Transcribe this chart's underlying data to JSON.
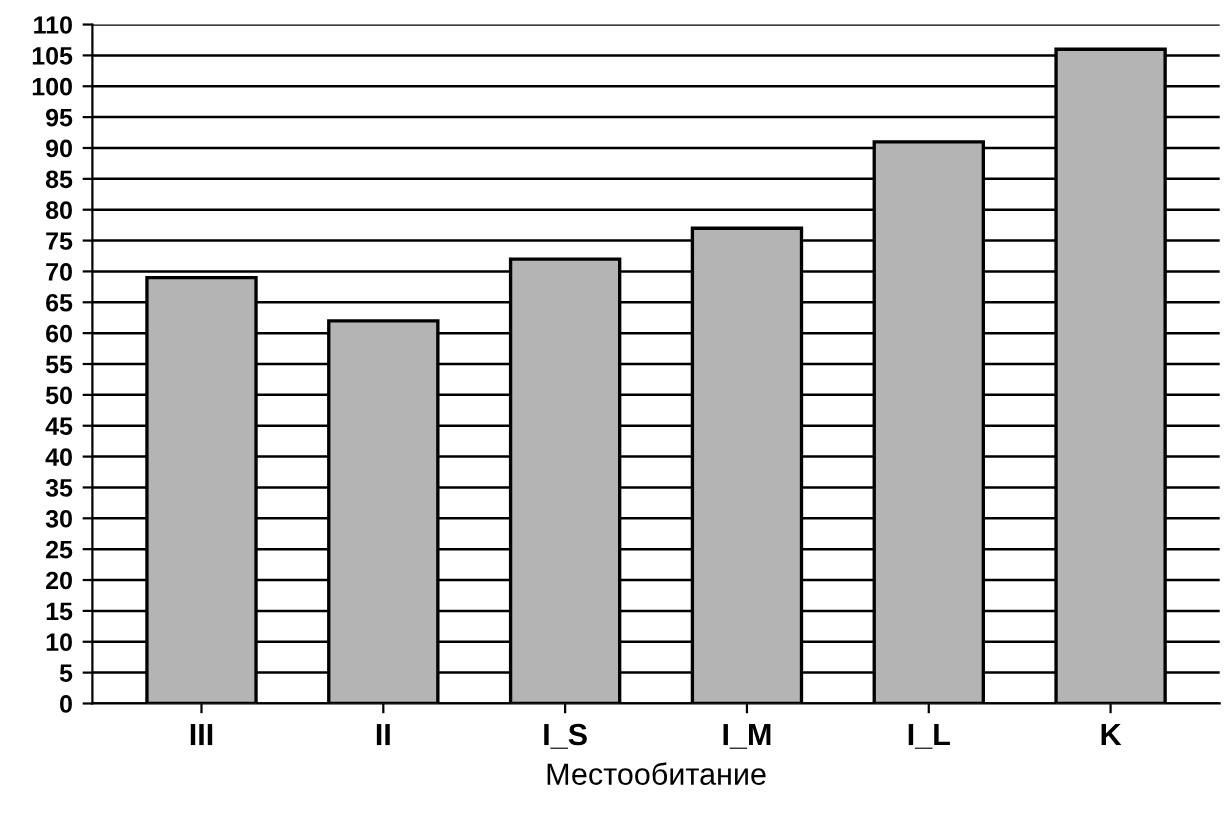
{
  "chart_data": {
    "type": "bar",
    "xlabel": "Местообитание",
    "categories": [
      "III",
      "II",
      "I_S",
      "I_M",
      "I_L",
      "K"
    ],
    "values": [
      69,
      62,
      72,
      77,
      91,
      106
    ],
    "color": "#b4b4b4",
    "ylim": [
      0,
      110
    ],
    "yticks": [
      0,
      5,
      10,
      15,
      20,
      25,
      30,
      35,
      40,
      45,
      50,
      55,
      60,
      65,
      70,
      75,
      80,
      85,
      90,
      95,
      100,
      105,
      110
    ],
    "grid": "y",
    "legend": false
  }
}
